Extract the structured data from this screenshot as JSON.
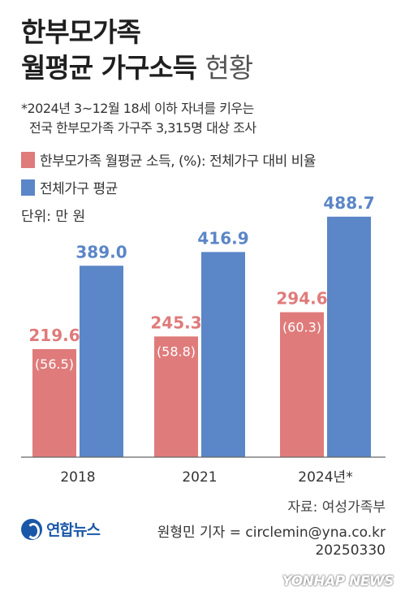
{
  "header": {
    "title_line1": "한부모가족",
    "title_line2_bold": "월평균 가구소득",
    "title_line2_light": "현황"
  },
  "note": {
    "line1": "*2024년 3~12월 18세 이하 자녀를 키우는",
    "line2": "전국 한부모가족 가구주 3,315명 대상 조사"
  },
  "unit": "단위: 만 원",
  "chart_data": {
    "type": "bar",
    "categories": [
      "2018",
      "2021",
      "2024년*"
    ],
    "series": [
      {
        "name": "한부모가족 월평균 소득, (%): 전체가구 대비 비율",
        "color": "#e07b7b",
        "values": [
          219.6,
          245.3,
          294.6
        ],
        "ratio_labels": [
          "(56.5)",
          "(58.8)",
          "(60.3)"
        ],
        "labels": [
          "219.6",
          "245.3",
          "294.6"
        ]
      },
      {
        "name": "전체가구 평균",
        "color": "#5b86c7",
        "values": [
          389.0,
          416.9,
          488.7
        ],
        "labels": [
          "389.0",
          "416.9",
          "488.7"
        ]
      }
    ],
    "ylim": [
      0,
      500
    ],
    "grid": false,
    "legend": "top-left"
  },
  "footer": {
    "source": "자료: 여성가족부",
    "reporter": "원형민 기자 = circlemin@yna.co.kr",
    "date": "20250330",
    "logo_text": "연합뉴스",
    "watermark": "YONHAP NEWS"
  }
}
